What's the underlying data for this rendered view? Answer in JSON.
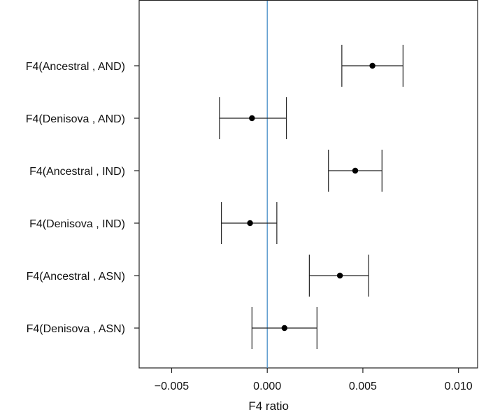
{
  "chart_data": {
    "type": "scatter",
    "subtype": "forest-plot-with-error-bars",
    "title": "",
    "xlabel": "F4 ratio",
    "ylabel": "",
    "xlim": [
      -0.0067,
      0.011
    ],
    "xticks": [
      -0.005,
      0.0,
      0.005,
      0.01
    ],
    "xtick_labels": [
      "−0.005",
      "0.000",
      "0.005",
      "0.010"
    ],
    "reference_line": {
      "x": 0.0,
      "color": "#4a90c8"
    },
    "grid": false,
    "rows": [
      {
        "label": "F4(Ancestral , AND)",
        "estimate": 0.0055,
        "lower": 0.0039,
        "upper": 0.0071
      },
      {
        "label": "F4(Denisova , AND)",
        "estimate": -0.0008,
        "lower": -0.0025,
        "upper": 0.001
      },
      {
        "label": "F4(Ancestral , IND)",
        "estimate": 0.0046,
        "lower": 0.0032,
        "upper": 0.006
      },
      {
        "label": "F4(Denisova , IND)",
        "estimate": -0.0009,
        "lower": -0.0024,
        "upper": 0.0005
      },
      {
        "label": "F4(Ancestral , ASN)",
        "estimate": 0.0038,
        "lower": 0.0022,
        "upper": 0.0053
      },
      {
        "label": "F4(Denisova , ASN)",
        "estimate": 0.0009,
        "lower": -0.0008,
        "upper": 0.0026
      }
    ]
  }
}
